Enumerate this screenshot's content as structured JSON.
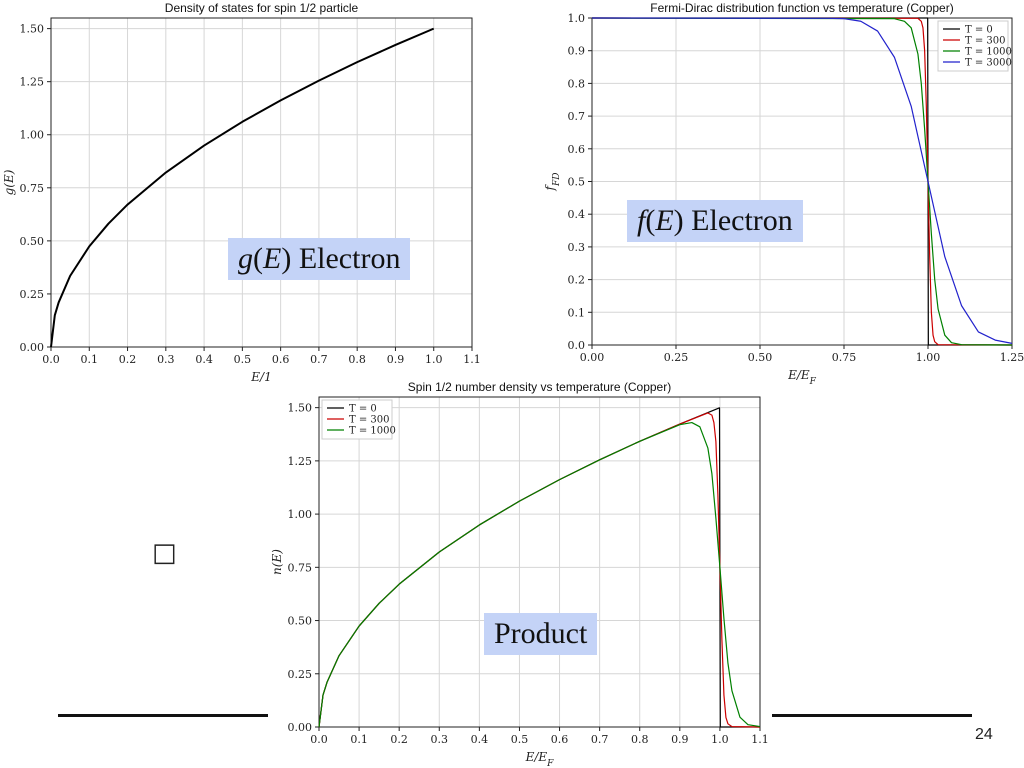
{
  "chart_data": [
    {
      "id": "dos",
      "type": "line",
      "title": "Density of states for spin 1/2 particle",
      "xlabel": "E/1",
      "ylabel": "g(E)",
      "xlim": [
        0,
        1.1
      ],
      "ylim": [
        0,
        1.55
      ],
      "xticks": [
        0,
        0.1,
        0.2,
        0.3,
        0.4,
        0.5,
        0.6,
        0.7,
        0.8,
        0.9,
        1.0,
        1.1
      ],
      "yticks": [
        0,
        0.25,
        0.5,
        0.75,
        1.0,
        1.25,
        1.5
      ],
      "xtick_labels": [
        "0.0",
        "0.1",
        "0.2",
        "0.3",
        "0.4",
        "0.5",
        "0.6",
        "0.7",
        "0.8",
        "0.9",
        "1.0",
        "1.1"
      ],
      "ytick_labels": [
        "0.00",
        "0.25",
        "0.50",
        "0.75",
        "1.00",
        "1.25",
        "1.50"
      ],
      "grid": true,
      "series": [
        {
          "color": "#000000",
          "x": [
            0,
            0.01,
            0.02,
            0.05,
            0.1,
            0.15,
            0.2,
            0.3,
            0.4,
            0.5,
            0.6,
            0.7,
            0.8,
            0.9,
            1.0
          ],
          "y": [
            0,
            0.15,
            0.21,
            0.335,
            0.474,
            0.581,
            0.671,
            0.822,
            0.949,
            1.061,
            1.162,
            1.255,
            1.342,
            1.423,
            1.5
          ]
        }
      ]
    },
    {
      "id": "fermi",
      "type": "line",
      "title": "Fermi-Dirac distribution function vs temperature (Copper)",
      "xlabel": "E/E_F",
      "ylabel": "f_FD",
      "xlim": [
        0,
        1.25
      ],
      "ylim": [
        0,
        1.0
      ],
      "xticks": [
        0,
        0.25,
        0.5,
        0.75,
        1.0,
        1.25
      ],
      "yticks": [
        0,
        0.1,
        0.2,
        0.3,
        0.4,
        0.5,
        0.6,
        0.7,
        0.8,
        0.9,
        1.0
      ],
      "xtick_labels": [
        "0.00",
        "0.25",
        "0.50",
        "0.75",
        "1.00",
        "1.25"
      ],
      "ytick_labels": [
        "0.0",
        "0.1",
        "0.2",
        "0.3",
        "0.4",
        "0.5",
        "0.6",
        "0.7",
        "0.8",
        "0.9",
        "1.0"
      ],
      "grid": true,
      "legend_placement": "top-right",
      "series": [
        {
          "name": "T = 0",
          "color": "#000000",
          "x": [
            0,
            0.999,
            1.0,
            1.001,
            1.25
          ],
          "y": [
            1,
            1,
            0.5,
            0,
            0
          ]
        },
        {
          "name": "T = 300",
          "color": "#cc0000",
          "x": [
            0,
            0.97,
            0.98,
            0.985,
            0.99,
            0.995,
            1.0,
            1.005,
            1.01,
            1.015,
            1.02,
            1.03,
            1.25
          ],
          "y": [
            1,
            0.999,
            0.99,
            0.97,
            0.9,
            0.73,
            0.5,
            0.27,
            0.1,
            0.03,
            0.01,
            0.001,
            0
          ]
        },
        {
          "name": "T = 1000",
          "color": "#008000",
          "x": [
            0,
            0.9,
            0.93,
            0.95,
            0.97,
            0.98,
            0.99,
            1.0,
            1.01,
            1.02,
            1.03,
            1.05,
            1.07,
            1.1,
            1.25
          ],
          "y": [
            1,
            0.998,
            0.99,
            0.97,
            0.89,
            0.8,
            0.66,
            0.5,
            0.34,
            0.2,
            0.11,
            0.03,
            0.007,
            0.001,
            0
          ]
        },
        {
          "name": "T = 3000",
          "color": "#2222cc",
          "x": [
            0,
            0.7,
            0.75,
            0.8,
            0.85,
            0.9,
            0.95,
            1.0,
            1.05,
            1.1,
            1.15,
            1.2,
            1.25
          ],
          "y": [
            1,
            0.999,
            0.998,
            0.99,
            0.96,
            0.88,
            0.73,
            0.5,
            0.27,
            0.12,
            0.04,
            0.015,
            0.005
          ]
        }
      ]
    },
    {
      "id": "product",
      "type": "line",
      "title": "Spin 1/2 number density vs temperature (Copper)",
      "xlabel": "E/E_F",
      "ylabel": "n(E)",
      "xlim": [
        0,
        1.1
      ],
      "ylim": [
        0,
        1.55
      ],
      "xticks": [
        0,
        0.1,
        0.2,
        0.3,
        0.4,
        0.5,
        0.6,
        0.7,
        0.8,
        0.9,
        1.0,
        1.1
      ],
      "yticks": [
        0,
        0.25,
        0.5,
        0.75,
        1.0,
        1.25,
        1.5
      ],
      "xtick_labels": [
        "0.0",
        "0.1",
        "0.2",
        "0.3",
        "0.4",
        "0.5",
        "0.6",
        "0.7",
        "0.8",
        "0.9",
        "1.0",
        "1.1"
      ],
      "ytick_labels": [
        "0.00",
        "0.25",
        "0.50",
        "0.75",
        "1.00",
        "1.25",
        "1.50"
      ],
      "grid": true,
      "legend_placement": "top-left",
      "series": [
        {
          "name": "T = 0",
          "color": "#000000",
          "x": [
            0,
            0.01,
            0.02,
            0.05,
            0.1,
            0.15,
            0.2,
            0.3,
            0.4,
            0.5,
            0.6,
            0.7,
            0.8,
            0.9,
            0.999,
            1.0,
            1.001,
            1.1
          ],
          "y": [
            0,
            0.15,
            0.21,
            0.335,
            0.474,
            0.581,
            0.671,
            0.822,
            0.949,
            1.061,
            1.162,
            1.255,
            1.342,
            1.423,
            1.499,
            0.75,
            0,
            0
          ]
        },
        {
          "name": "T = 300",
          "color": "#cc0000",
          "x": [
            0,
            0.01,
            0.02,
            0.05,
            0.1,
            0.15,
            0.2,
            0.3,
            0.4,
            0.5,
            0.6,
            0.7,
            0.8,
            0.9,
            0.97,
            0.98,
            0.985,
            0.99,
            0.995,
            1.0,
            1.005,
            1.01,
            1.015,
            1.02,
            1.03,
            1.1
          ],
          "y": [
            0,
            0.15,
            0.21,
            0.335,
            0.474,
            0.581,
            0.671,
            0.822,
            0.949,
            1.061,
            1.162,
            1.255,
            1.342,
            1.423,
            1.475,
            1.465,
            1.43,
            1.34,
            1.09,
            0.75,
            0.41,
            0.15,
            0.045,
            0.015,
            0.002,
            0
          ]
        },
        {
          "name": "T = 1000",
          "color": "#008000",
          "x": [
            0,
            0.01,
            0.02,
            0.05,
            0.1,
            0.15,
            0.2,
            0.3,
            0.4,
            0.5,
            0.6,
            0.7,
            0.8,
            0.9,
            0.93,
            0.95,
            0.97,
            0.98,
            0.99,
            1.0,
            1.01,
            1.02,
            1.03,
            1.05,
            1.07,
            1.1
          ],
          "y": [
            0,
            0.15,
            0.21,
            0.335,
            0.474,
            0.581,
            0.671,
            0.822,
            0.949,
            1.061,
            1.162,
            1.255,
            1.342,
            1.42,
            1.43,
            1.41,
            1.31,
            1.19,
            0.98,
            0.75,
            0.51,
            0.3,
            0.17,
            0.046,
            0.011,
            0.002
          ]
        }
      ]
    }
  ],
  "callouts": {
    "g": {
      "func": "g",
      "arg": "E",
      "text": "Electron"
    },
    "f": {
      "func": "f",
      "arg": "E",
      "text": "Electron"
    },
    "product": {
      "text": "Product"
    }
  },
  "left_glyph": "□",
  "page_number": "24"
}
